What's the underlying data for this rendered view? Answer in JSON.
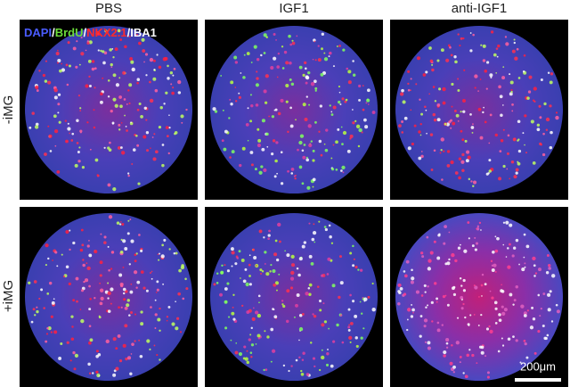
{
  "columns": [
    "PBS",
    "IGF1",
    "anti-IGF1"
  ],
  "rows": [
    "-iMG",
    "+iMG"
  ],
  "stain_legend": {
    "stains": [
      "DAPI",
      "BrdU",
      "NKX2.1",
      "IBA1"
    ],
    "separator": "/"
  },
  "scale_bar": "200μm"
}
